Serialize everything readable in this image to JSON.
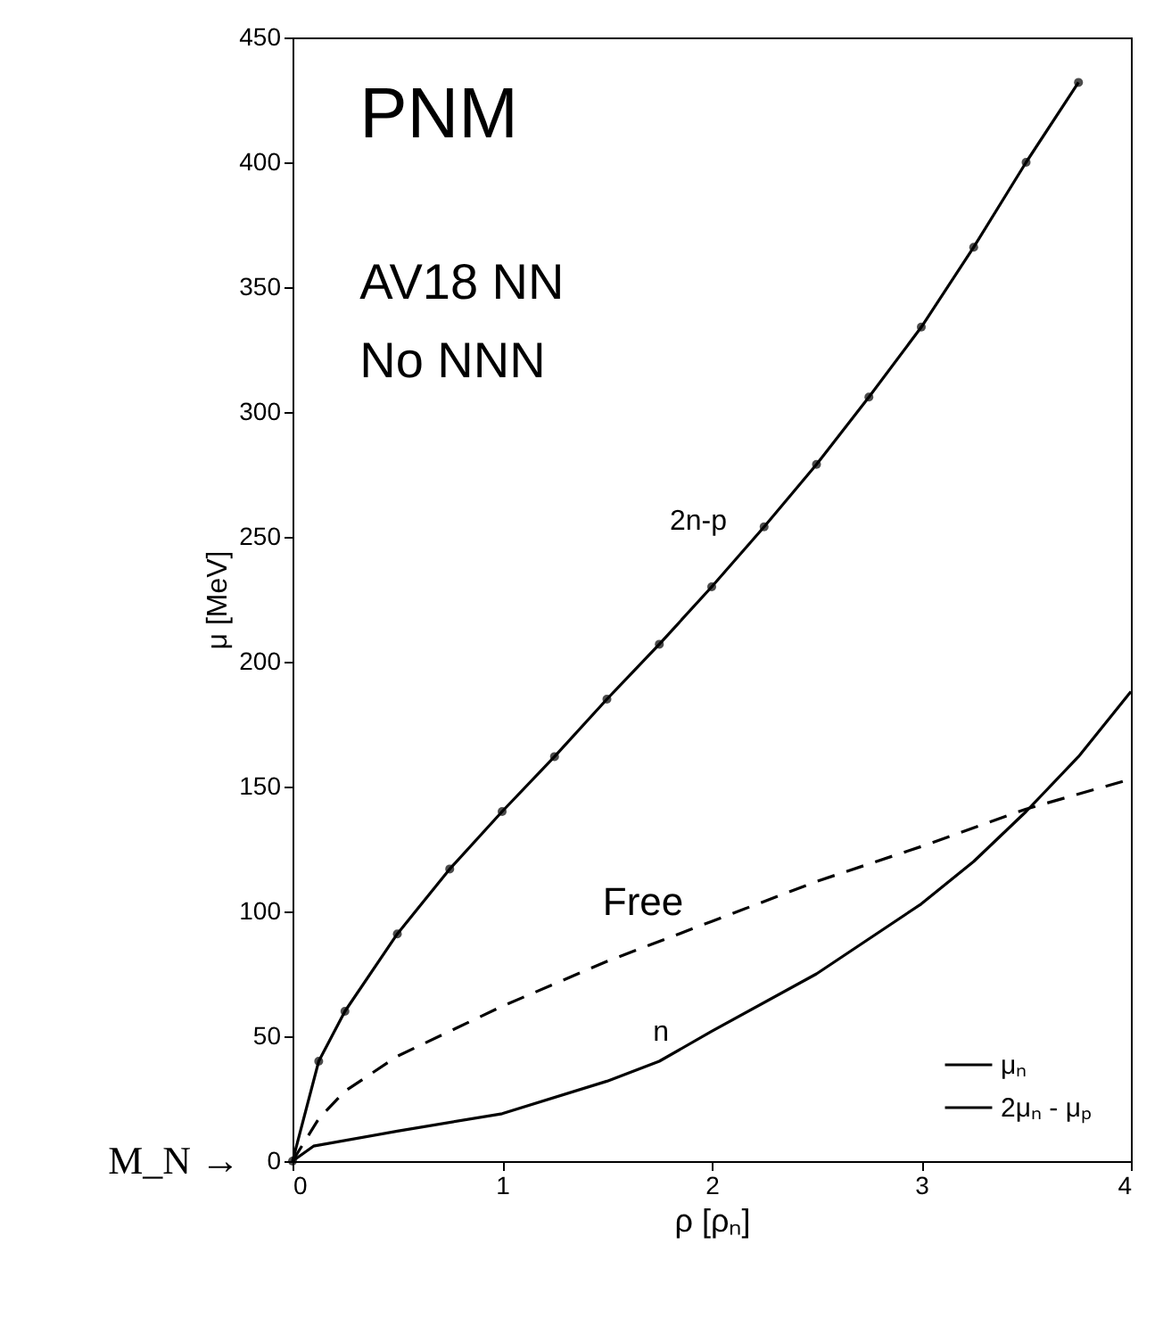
{
  "chart_data": {
    "type": "line",
    "xlabel": "ρ  [ρₙ]",
    "ylabel": "μ  [MeV]",
    "xlim": [
      0,
      4
    ],
    "ylim": [
      0,
      450
    ],
    "xticks": [
      0,
      1,
      2,
      3,
      4
    ],
    "yticks": [
      0,
      50,
      100,
      150,
      200,
      250,
      300,
      350,
      400,
      450
    ],
    "grid": false,
    "legend": "bottom right",
    "series": [
      {
        "name": "μₙ",
        "color": "#000000",
        "line_style": "solid",
        "marker": "none",
        "x": [
          0,
          0.1,
          0.5,
          1,
          1.5,
          1.75,
          2,
          2.5,
          3,
          3.25,
          3.5,
          3.75,
          4
        ],
        "values": [
          0,
          6,
          12,
          19,
          32,
          40,
          52,
          75,
          103,
          120,
          140,
          162,
          188
        ]
      },
      {
        "name": "2μₙ - μₚ",
        "color": "#000000",
        "line_style": "solid",
        "marker": "circle",
        "x": [
          0,
          0.125,
          0.25,
          0.5,
          0.75,
          1,
          1.25,
          1.5,
          1.75,
          2,
          2.25,
          2.5,
          2.75,
          3,
          3.25,
          3.5,
          3.75
        ],
        "values": [
          0,
          40,
          60,
          91,
          117,
          140,
          162,
          185,
          207,
          230,
          254,
          279,
          306,
          334,
          366,
          400,
          432
        ]
      },
      {
        "color": "#000000",
        "line_style": "dashed",
        "marker": "none",
        "x": [
          0,
          0.125,
          0.25,
          0.5,
          1,
          1.5,
          2,
          2.5,
          3,
          3.5,
          4
        ],
        "values": [
          0,
          17,
          28,
          42,
          62,
          80,
          96,
          112,
          126,
          141,
          153
        ]
      }
    ],
    "annotations": [
      "PNM",
      "AV18 NN",
      "No NNN",
      "2n-p",
      "Free",
      "n",
      "M_N →"
    ]
  }
}
